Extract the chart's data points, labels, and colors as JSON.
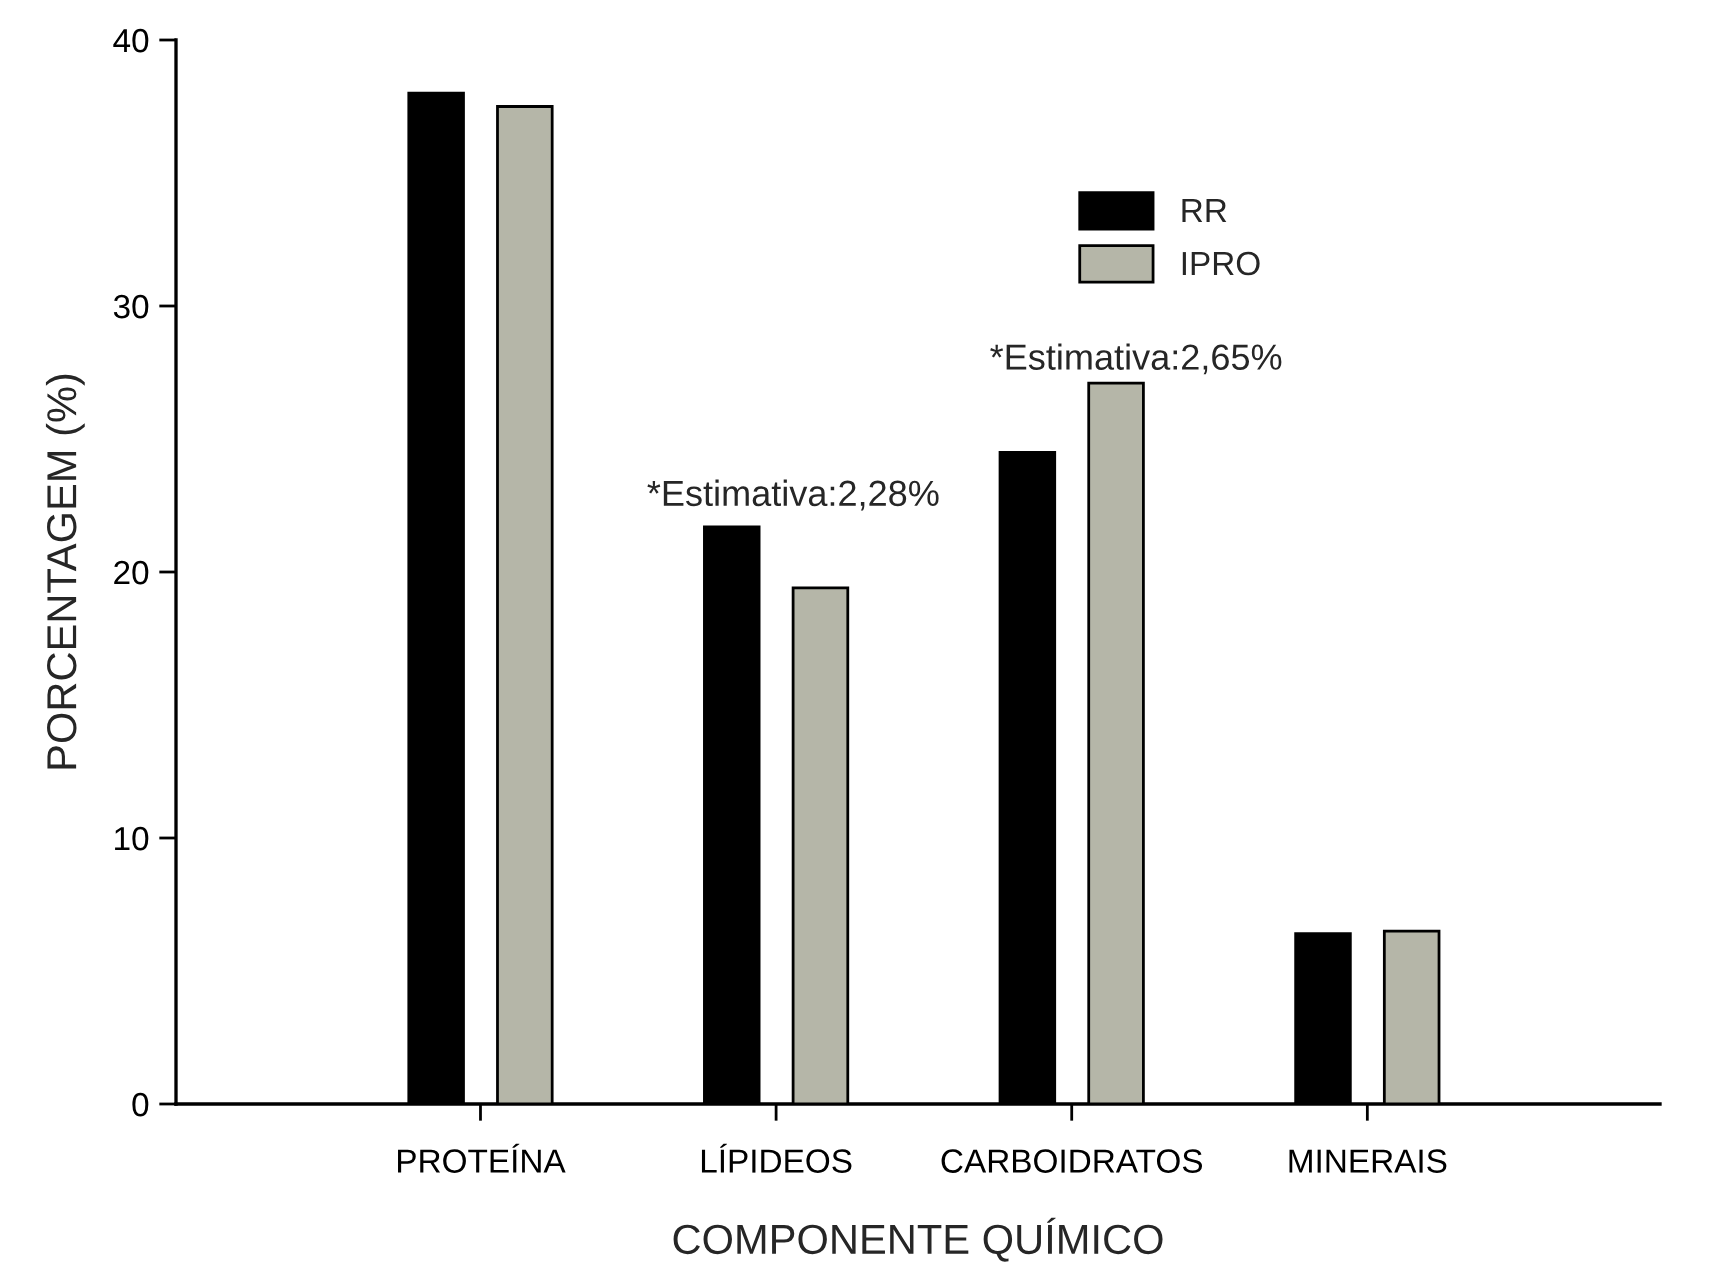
{
  "chart_data": {
    "type": "bar",
    "xlabel": "COMPONENTE QUÍMICO",
    "ylabel": "PORCENTAGEM (%)",
    "categories": [
      "PROTEÍNA",
      "LÍPIDEOS",
      "CARBOIDRATOS",
      "MINERAIS"
    ],
    "series": [
      {
        "name": "RR",
        "color": "#000000",
        "values": [
          38.0,
          21.7,
          24.5,
          6.4
        ]
      },
      {
        "name": "IPRO",
        "color": "#b5b6a8",
        "values": [
          37.5,
          19.4,
          27.1,
          6.5
        ]
      }
    ],
    "ylim": [
      0,
      40
    ],
    "yticks": [
      0,
      10,
      20,
      30,
      40
    ],
    "grid": false,
    "legend": "top right",
    "annotations": [
      "*Estimativa:2,28%",
      "*Estimativa:2,65%"
    ]
  }
}
